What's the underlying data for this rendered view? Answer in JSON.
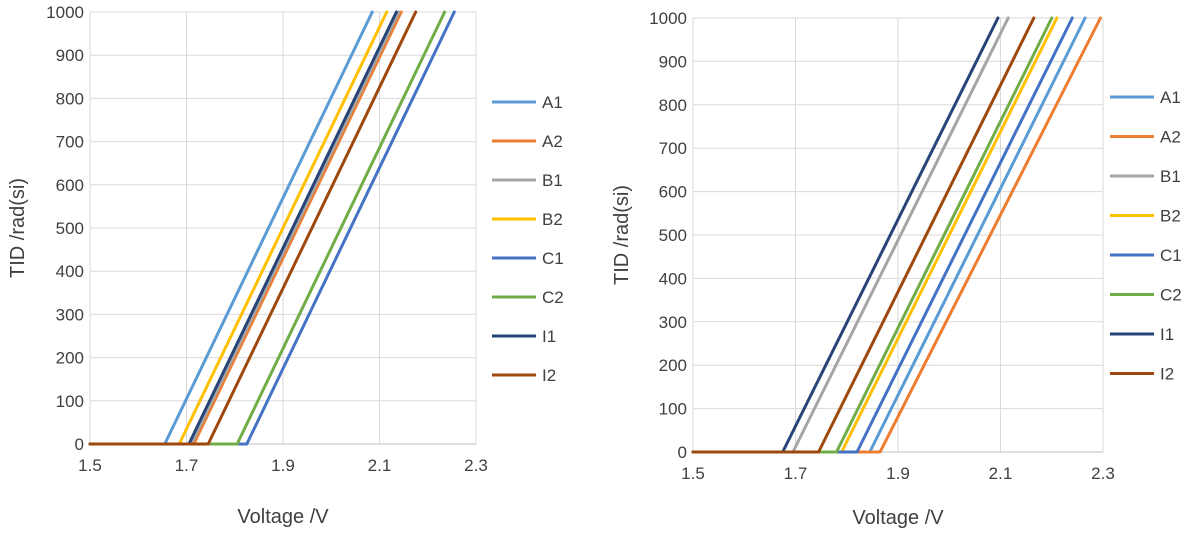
{
  "chart_data": [
    {
      "type": "line",
      "title": "",
      "xlabel": "Voltage /V",
      "ylabel": "TID /rad(si)",
      "xlim": [
        1.5,
        2.3
      ],
      "ylim": [
        0,
        1000
      ],
      "xticks": [
        "1.5",
        "1.7",
        "1.9",
        "2.1",
        "2.3"
      ],
      "yticks": [
        "0",
        "100",
        "200",
        "300",
        "400",
        "500",
        "600",
        "700",
        "800",
        "900",
        "1000"
      ],
      "grid": true,
      "legend_position": "right",
      "series": [
        {
          "name": "A1",
          "color": "#5B9BD5",
          "points": [
            [
              1.5,
              0
            ],
            [
              1.655,
              0
            ],
            [
              2.085,
              1000
            ]
          ]
        },
        {
          "name": "A2",
          "color": "#ED7D31",
          "points": [
            [
              1.5,
              0
            ],
            [
              1.715,
              0
            ],
            [
              2.145,
              1000
            ]
          ]
        },
        {
          "name": "B1",
          "color": "#A5A5A5",
          "points": [
            [
              1.5,
              0
            ],
            [
              1.71,
              0
            ],
            [
              2.14,
              1000
            ]
          ]
        },
        {
          "name": "B2",
          "color": "#FFC000",
          "points": [
            [
              1.5,
              0
            ],
            [
              1.685,
              0
            ],
            [
              2.115,
              1000
            ]
          ]
        },
        {
          "name": "C1",
          "color": "#4472C4",
          "points": [
            [
              1.5,
              0
            ],
            [
              1.825,
              0
            ],
            [
              2.255,
              1000
            ]
          ]
        },
        {
          "name": "C2",
          "color": "#70AD47",
          "points": [
            [
              1.5,
              0
            ],
            [
              1.805,
              0
            ],
            [
              2.235,
              1000
            ]
          ]
        },
        {
          "name": "I1",
          "color": "#264478",
          "points": [
            [
              1.5,
              0
            ],
            [
              1.705,
              0
            ],
            [
              2.135,
              1000
            ]
          ]
        },
        {
          "name": "I2",
          "color": "#9E480E",
          "points": [
            [
              1.5,
              0
            ],
            [
              1.745,
              0
            ],
            [
              2.175,
              1000
            ]
          ]
        }
      ]
    },
    {
      "type": "line",
      "title": "",
      "xlabel": "Voltage /V",
      "ylabel": "TID /rad(si)",
      "xlim": [
        1.5,
        2.3
      ],
      "ylim": [
        0,
        1000
      ],
      "xticks": [
        "1.5",
        "1.7",
        "1.9",
        "2.1",
        "2.3"
      ],
      "yticks": [
        "0",
        "100",
        "200",
        "300",
        "400",
        "500",
        "600",
        "700",
        "800",
        "900",
        "1000"
      ],
      "grid": true,
      "legend_position": "right",
      "series": [
        {
          "name": "A1",
          "color": "#5B9BD5",
          "points": [
            [
              1.5,
              0
            ],
            [
              1.845,
              0
            ],
            [
              2.265,
              1000
            ]
          ]
        },
        {
          "name": "A2",
          "color": "#ED7D31",
          "points": [
            [
              1.5,
              0
            ],
            [
              1.865,
              0
            ],
            [
              2.295,
              1000
            ]
          ]
        },
        {
          "name": "B1",
          "color": "#A5A5A5",
          "points": [
            [
              1.5,
              0
            ],
            [
              1.695,
              0
            ],
            [
              2.115,
              1000
            ]
          ]
        },
        {
          "name": "B2",
          "color": "#FFC000",
          "points": [
            [
              1.5,
              0
            ],
            [
              1.79,
              0
            ],
            [
              2.21,
              1000
            ]
          ]
        },
        {
          "name": "C1",
          "color": "#4472C4",
          "points": [
            [
              1.5,
              0
            ],
            [
              1.82,
              0
            ],
            [
              2.24,
              1000
            ]
          ]
        },
        {
          "name": "C2",
          "color": "#70AD47",
          "points": [
            [
              1.5,
              0
            ],
            [
              1.78,
              0
            ],
            [
              2.2,
              1000
            ]
          ]
        },
        {
          "name": "I1",
          "color": "#264478",
          "points": [
            [
              1.5,
              0
            ],
            [
              1.675,
              0
            ],
            [
              2.095,
              1000
            ]
          ]
        },
        {
          "name": "I2",
          "color": "#9E480E",
          "points": [
            [
              1.5,
              0
            ],
            [
              1.745,
              0
            ],
            [
              2.165,
              1000
            ]
          ]
        }
      ]
    }
  ]
}
